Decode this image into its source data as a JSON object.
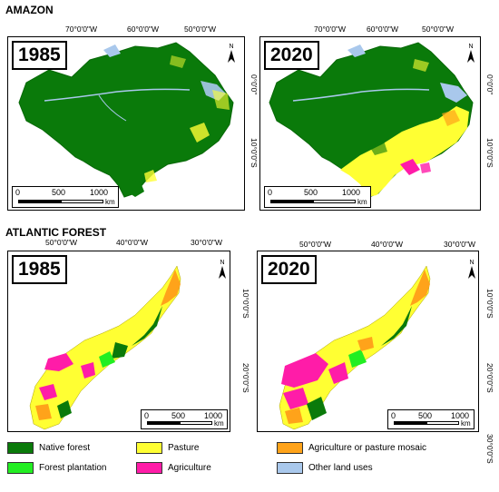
{
  "sections": {
    "amazon": "AMAZON",
    "atlantic": "ATLANTIC FOREST"
  },
  "panels": {
    "amazon_1985": {
      "year": "1985",
      "north": "N"
    },
    "amazon_2020": {
      "year": "2020",
      "north": "N"
    },
    "atlantic_1985": {
      "year": "1985",
      "north": "N"
    },
    "atlantic_2020": {
      "year": "2020",
      "north": "N"
    }
  },
  "scalebar": {
    "v0": "0",
    "v1": "500",
    "v2": "1000",
    "unit": "km"
  },
  "amazon_graticule": {
    "lon": [
      "70°0'0\"W",
      "60°0'0\"W",
      "50°0'0\"W"
    ],
    "lat": [
      "0°0'0\"",
      "10°0'0\"S"
    ]
  },
  "atlantic_graticule": {
    "lon": [
      "50°0'0\"W",
      "40°0'0\"W",
      "30°0'0\"W"
    ],
    "lat": [
      "10°0'0\"S",
      "20°0'0\"S",
      "30°0'0\"S"
    ]
  },
  "legend": [
    {
      "label": "Native forest",
      "color": "#0a7a0a"
    },
    {
      "label": "Forest plantation",
      "color": "#22ee22"
    },
    {
      "label": "Pasture",
      "color": "#ffff33"
    },
    {
      "label": "Agriculture",
      "color": "#ff1ca8"
    },
    {
      "label": "Agriculture or pasture mosaic",
      "color": "#ffa31a"
    },
    {
      "label": "Other land uses",
      "color": "#a9c8ec"
    }
  ]
}
